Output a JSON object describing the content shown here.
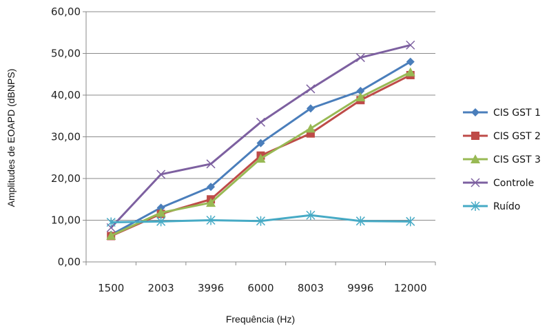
{
  "chart_data": {
    "type": "line",
    "categories": [
      "1500",
      "2003",
      "3996",
      "6000",
      "8003",
      "9996",
      "12000"
    ],
    "xlabel": "Frequência (Hz)",
    "ylabel": "Amplitudes de EOAPD (dBNPS)",
    "ylim": [
      0,
      60
    ],
    "y_ticks": [
      "0,00",
      "10,00",
      "20,00",
      "30,00",
      "40,00",
      "50,00",
      "60,00"
    ],
    "grid": true,
    "legend_position": "right",
    "series": [
      {
        "name": "CIS GST 1",
        "color": "#4a7ebb",
        "marker": "diamond",
        "values": [
          6.5,
          13.0,
          18.0,
          28.5,
          36.8,
          41.0,
          48.0
        ]
      },
      {
        "name": "CIS GST 2",
        "color": "#be4b48",
        "marker": "square",
        "values": [
          6.2,
          11.5,
          15.0,
          25.5,
          30.8,
          38.8,
          44.8
        ]
      },
      {
        "name": "CIS GST 3",
        "color": "#98b954",
        "marker": "triangle",
        "values": [
          6.3,
          11.8,
          14.2,
          24.8,
          32.0,
          39.5,
          45.5
        ]
      },
      {
        "name": "Controle",
        "color": "#7d60a0",
        "marker": "x",
        "values": [
          8.2,
          21.0,
          23.5,
          33.5,
          41.5,
          49.0,
          52.0
        ]
      },
      {
        "name": "Ruído",
        "color": "#46aac5",
        "marker": "star",
        "values": [
          9.5,
          9.7,
          10.0,
          9.8,
          11.2,
          9.8,
          9.7
        ]
      }
    ]
  }
}
